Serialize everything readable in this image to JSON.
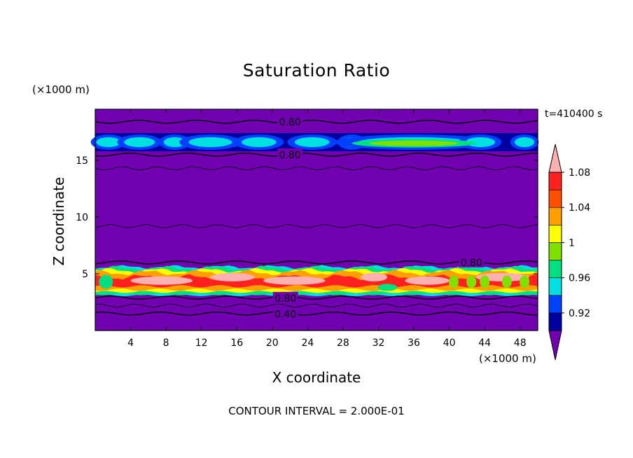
{
  "chart_data": {
    "type": "heatmap",
    "title": "Saturation Ratio",
    "xlabel": "X coordinate",
    "ylabel": "Z coordinate",
    "x_unit": "(×1000 m)",
    "y_unit": "(×1000 m)",
    "time_label": "t=410400 s",
    "footer": "CONTOUR INTERVAL = 2.000E-01",
    "xlim": [
      0,
      50
    ],
    "ylim": [
      0,
      19.5
    ],
    "x_ticks": [
      4,
      8,
      12,
      16,
      20,
      24,
      28,
      32,
      36,
      40,
      44,
      48
    ],
    "x_tick_labels": [
      "4",
      "8",
      "12",
      "16",
      "20",
      "24",
      "28",
      "32",
      "36",
      "40",
      "44",
      "48"
    ],
    "y_ticks": [
      5,
      10,
      15
    ],
    "y_tick_labels": [
      "5",
      "10",
      "15"
    ],
    "colorbar": {
      "levels": [
        0.92,
        0.96,
        1,
        1.04,
        1.08
      ],
      "level_labels": [
        "0.92",
        "0.96",
        "1",
        "1.04",
        "1.08"
      ],
      "colors": [
        "#7000b0",
        "#0000a0",
        "#0040ff",
        "#00e0e0",
        "#00e080",
        "#80e000",
        "#ffff00",
        "#ffa000",
        "#ff5000",
        "#ff2020",
        "#ffb0b0"
      ]
    },
    "contour_labels": [
      "0.80",
      "0.80",
      "0.80",
      "0.80",
      "0.40"
    ],
    "layers": [
      {
        "name": "upper cloud band",
        "z_range": [
          15.8,
          17.4
        ],
        "value_range": [
          0.92,
          1.04
        ]
      },
      {
        "name": "lower cloud band",
        "z_range": [
          3.1,
          5.6
        ],
        "value_range": [
          0.96,
          1.1
        ]
      }
    ],
    "contours": [
      {
        "value": 0.8,
        "z": 18.4
      },
      {
        "value": 0.8,
        "z": 15.5
      },
      {
        "value": 0.8,
        "z": 6.0
      },
      {
        "value": 0.8,
        "z": 2.9
      },
      {
        "value": 0.4,
        "z": 1.5
      }
    ]
  }
}
